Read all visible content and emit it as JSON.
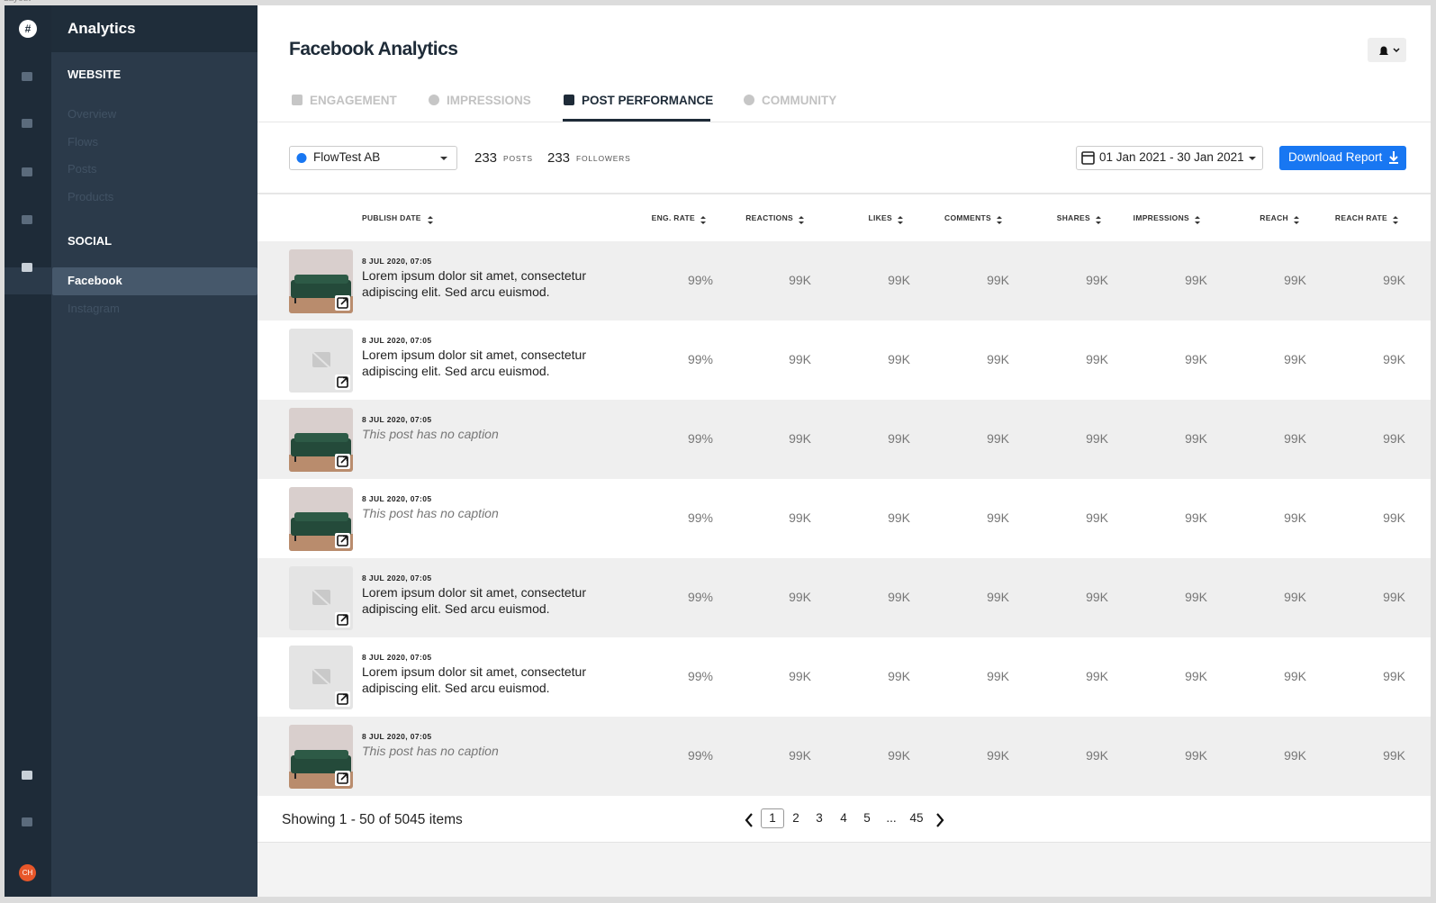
{
  "frame_label": "Layout",
  "sidebar": {
    "title": "Analytics",
    "sections": [
      {
        "title": "WEBSITE",
        "items": [
          "Overview",
          "Flows",
          "Posts",
          "Products"
        ]
      },
      {
        "title": "SOCIAL",
        "items": [
          "Facebook",
          "Instagram"
        ]
      }
    ],
    "active_section": 1,
    "active_item": 0,
    "avatar": "CH"
  },
  "header": {
    "title": "Facebook Analytics"
  },
  "tabs": {
    "items": [
      "ENGAGEMENT",
      "IMPRESSIONS",
      "POST PERFORMANCE",
      "COMMUNITY"
    ],
    "active": 2
  },
  "toolbar": {
    "page_select": "FlowTest AB",
    "stats": [
      {
        "value": "233",
        "label": "POSTS"
      },
      {
        "value": "233",
        "label": "FOLLOWERS"
      }
    ],
    "date_range": "01 Jan 2021 - 30 Jan 2021",
    "download": "Download Report"
  },
  "table": {
    "columns": [
      "PUBLISH DATE",
      "ENG. RATE",
      "REACTIONS",
      "LIKES",
      "COMMENTS",
      "SHARES",
      "IMPRESSIONS",
      "REACH",
      "REACH RATE"
    ],
    "rows": [
      {
        "image": "photo",
        "date": "8 JUL 2020, 07:05",
        "caption": "Lorem ipsum dolor sit amet, consectetur adipiscing elit. Sed arcu euismod.",
        "has_caption": true,
        "metrics": [
          "99%",
          "99K",
          "99K",
          "99K",
          "99K",
          "99K",
          "99K",
          "99K"
        ]
      },
      {
        "image": "placeholder",
        "date": "8 JUL 2020, 07:05",
        "caption": "Lorem ipsum dolor sit amet, consectetur adipiscing elit. Sed arcu euismod.",
        "has_caption": true,
        "metrics": [
          "99%",
          "99K",
          "99K",
          "99K",
          "99K",
          "99K",
          "99K",
          "99K"
        ]
      },
      {
        "image": "photo",
        "date": "8 JUL 2020, 07:05",
        "caption": "This post has no caption",
        "has_caption": false,
        "metrics": [
          "99%",
          "99K",
          "99K",
          "99K",
          "99K",
          "99K",
          "99K",
          "99K"
        ]
      },
      {
        "image": "photo",
        "date": "8 JUL 2020, 07:05",
        "caption": "This post has no caption",
        "has_caption": false,
        "metrics": [
          "99%",
          "99K",
          "99K",
          "99K",
          "99K",
          "99K",
          "99K",
          "99K"
        ]
      },
      {
        "image": "placeholder",
        "date": "8 JUL 2020, 07:05",
        "caption": "Lorem ipsum dolor sit amet, consectetur adipiscing elit. Sed arcu euismod.",
        "has_caption": true,
        "metrics": [
          "99%",
          "99K",
          "99K",
          "99K",
          "99K",
          "99K",
          "99K",
          "99K"
        ]
      },
      {
        "image": "placeholder",
        "date": "8 JUL 2020, 07:05",
        "caption": "Lorem ipsum dolor sit amet, consectetur adipiscing elit. Sed arcu euismod.",
        "has_caption": true,
        "metrics": [
          "99%",
          "99K",
          "99K",
          "99K",
          "99K",
          "99K",
          "99K",
          "99K"
        ]
      },
      {
        "image": "photo",
        "date": "8 JUL 2020, 07:05",
        "caption": "This post has no caption",
        "has_caption": false,
        "metrics": [
          "99%",
          "99K",
          "99K",
          "99K",
          "99K",
          "99K",
          "99K",
          "99K"
        ]
      }
    ]
  },
  "pagination": {
    "summary": "Showing 1 - 50 of 5045 items",
    "pages": [
      "1",
      "2",
      "3",
      "4",
      "5",
      "...",
      "45"
    ],
    "current": 0
  }
}
